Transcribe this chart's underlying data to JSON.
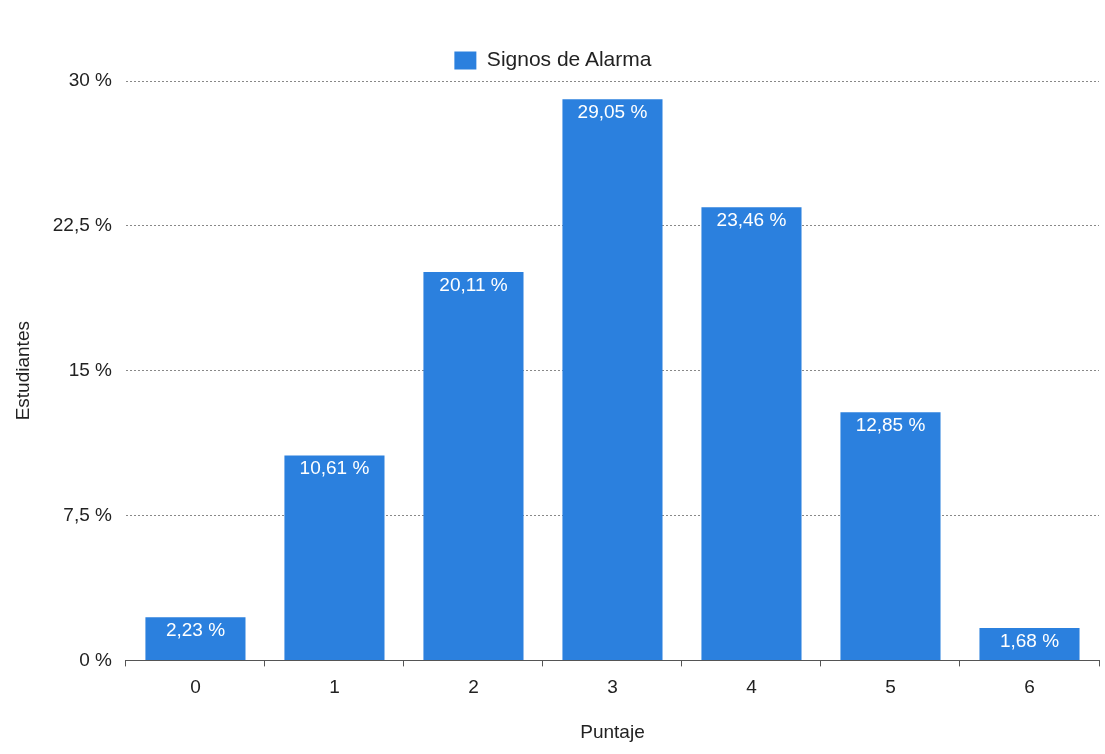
{
  "chart_data": {
    "type": "bar",
    "xlabel": "Puntaje",
    "ylabel": "Estudiantes",
    "categories": [
      "0",
      "1",
      "2",
      "3",
      "4",
      "5",
      "6"
    ],
    "series": [
      {
        "name": "Signos de Alarma",
        "color": "#2b80de",
        "values": [
          2.23,
          10.61,
          20.11,
          29.05,
          23.46,
          12.85,
          1.68
        ],
        "value_labels": [
          "2,23 %",
          "10,61 %",
          "20,11 %",
          "29,05 %",
          "23,46 %",
          "12,85 %",
          "1,68 %"
        ]
      }
    ],
    "ylim": [
      0,
      30
    ],
    "yticks": [
      {
        "value": 0,
        "label": "0 %"
      },
      {
        "value": 7.5,
        "label": "7,5 %"
      },
      {
        "value": 15,
        "label": "15 %"
      },
      {
        "value": 22.5,
        "label": "22,5 %"
      },
      {
        "value": 30,
        "label": "30 %"
      }
    ],
    "grid": "y",
    "legend": "top"
  }
}
